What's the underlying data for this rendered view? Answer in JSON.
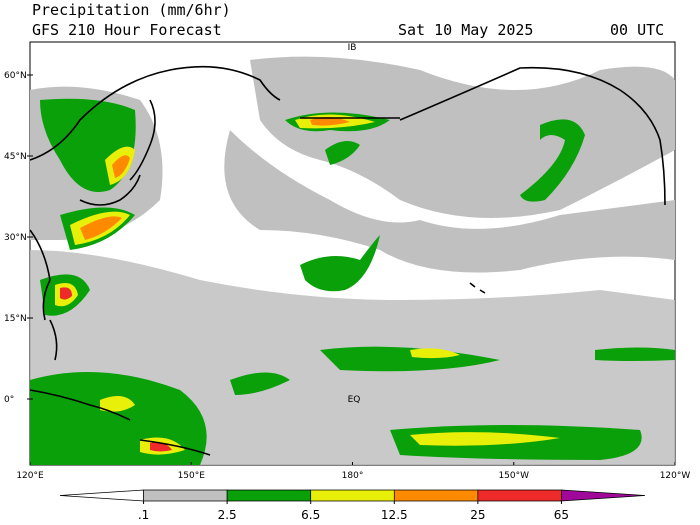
{
  "header": {
    "title": "Precipitation (mm/6hr)",
    "subtitle": "GFS 210 Hour Forecast",
    "valid": "Sat 10 May 2025",
    "time": "00 UTC"
  },
  "map": {
    "lat_labels": [
      "60°N",
      "45°N",
      "30°N",
      "15°N",
      "0°"
    ],
    "lon_labels": [
      "120°E",
      "150°E",
      "180°",
      "150°W",
      "120°W"
    ],
    "annotations": [
      "IB",
      "EQ"
    ]
  },
  "colorbar": {
    "levels": [
      {
        "value": 0.1,
        "label": ".1"
      },
      2.5,
      6.5,
      12.5,
      25,
      65
    ],
    "colors": [
      "#ffffff",
      "#c0c0c0",
      "#0aa00a",
      "#e8f00a",
      "#ff8a00",
      "#ee2a2a",
      "#a0089a"
    ]
  }
}
